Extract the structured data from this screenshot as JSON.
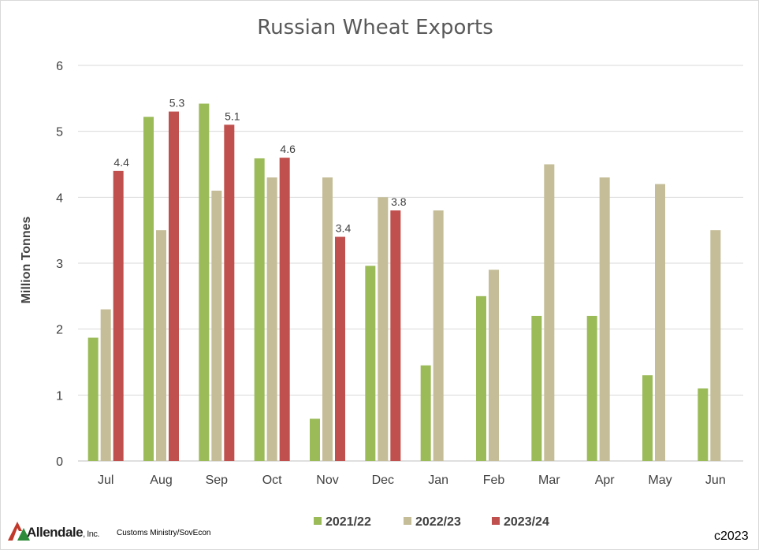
{
  "chart_data": {
    "type": "bar",
    "title": "Russian Wheat Exports",
    "xlabel": "",
    "ylabel": "Million Tonnes",
    "ylim": [
      0,
      6
    ],
    "yticks": [
      "0",
      "1",
      "2",
      "3",
      "4",
      "5",
      "6"
    ],
    "grid": true,
    "legend_position": "bottom",
    "categories": [
      "Jul",
      "Aug",
      "Sep",
      "Oct",
      "Nov",
      "Dec",
      "Jan",
      "Feb",
      "Mar",
      "Apr",
      "May",
      "Jun"
    ],
    "series": [
      {
        "name": "2021/22",
        "color": "#9bbb59",
        "values": [
          1.87,
          5.22,
          5.42,
          4.59,
          0.64,
          2.96,
          1.45,
          2.5,
          2.2,
          2.2,
          1.3,
          1.1
        ],
        "data_labels": [
          null,
          null,
          null,
          null,
          null,
          null,
          null,
          null,
          null,
          null,
          null,
          null
        ]
      },
      {
        "name": "2022/23",
        "color": "#c4bd97",
        "values": [
          2.3,
          3.5,
          4.1,
          4.3,
          4.3,
          4.0,
          3.8,
          2.9,
          4.5,
          4.3,
          4.2,
          3.5
        ],
        "data_labels": [
          null,
          null,
          null,
          null,
          null,
          null,
          null,
          null,
          null,
          null,
          null,
          null
        ]
      },
      {
        "name": "2023/24",
        "color": "#c0504d",
        "values": [
          4.4,
          5.3,
          5.1,
          4.6,
          3.4,
          3.8,
          null,
          null,
          null,
          null,
          null,
          null
        ],
        "data_labels": [
          "4.4",
          "5.3",
          "5.1",
          "4.6",
          "3.4",
          "3.8",
          null,
          null,
          null,
          null,
          null,
          null
        ]
      }
    ]
  },
  "footer": {
    "logo_text": "Allendale",
    "logo_suffix": ", Inc.",
    "logo_colors": {
      "red": "#c0392b",
      "green": "#2e8b3a"
    },
    "source": "Customs Ministry/SovEcon",
    "copyright": "c2023"
  }
}
